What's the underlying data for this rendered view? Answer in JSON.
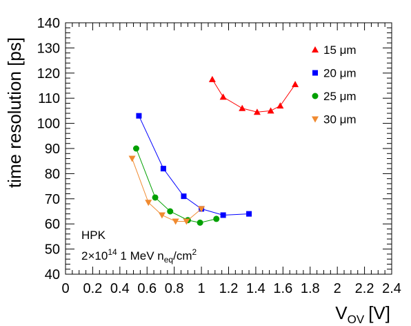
{
  "chart_data": {
    "type": "scatter",
    "xlabel_main": "V",
    "xlabel_sub": "OV",
    "xlabel_unit": "[V]",
    "ylabel": "time resolution [ps]",
    "xlim": [
      0,
      2.4
    ],
    "ylim": [
      40,
      140
    ],
    "x_ticks": [
      "0",
      "0.2",
      "0.4",
      "0.6",
      "0.8",
      "1",
      "1.2",
      "1.4",
      "1.6",
      "1.8",
      "2",
      "2.2",
      "2.4"
    ],
    "y_ticks": [
      "40",
      "50",
      "60",
      "70",
      "80",
      "90",
      "100",
      "110",
      "120",
      "130",
      "140"
    ],
    "annotation": {
      "line1": "HPK",
      "line2_prefix": "2",
      "line2_times": "×",
      "line2_base": "10",
      "line2_exp": "14",
      "line2_mid": " 1 MeV n",
      "line2_sub": "eq",
      "line2_unit": "/cm",
      "line2_unit_exp": "2"
    },
    "legend": {
      "position": "top-right"
    },
    "series": [
      {
        "name": "15 μm",
        "color": "#ff0000",
        "marker": "triangle-up",
        "x": [
          1.08,
          1.16,
          1.3,
          1.41,
          1.51,
          1.58,
          1.69
        ],
        "y": [
          117.5,
          110.5,
          106.0,
          104.5,
          105.0,
          107.0,
          115.5
        ]
      },
      {
        "name": "20 μm",
        "color": "#0000ff",
        "marker": "square",
        "x": [
          0.54,
          0.72,
          0.87,
          1.0,
          1.16,
          1.35
        ],
        "y": [
          103.0,
          82.0,
          71.0,
          66.0,
          63.5,
          64.0
        ]
      },
      {
        "name": "25 μm",
        "color": "#00a000",
        "marker": "circle",
        "x": [
          0.52,
          0.66,
          0.77,
          0.9,
          0.99,
          1.11
        ],
        "y": [
          90.0,
          70.5,
          65.0,
          61.5,
          60.5,
          62.0
        ]
      },
      {
        "name": "30 μm",
        "color": "#f08a30",
        "marker": "triangle-down",
        "x": [
          0.49,
          0.61,
          0.71,
          0.81,
          0.89,
          1.0
        ],
        "y": [
          86.0,
          68.5,
          63.5,
          61.0,
          61.0,
          66.0
        ]
      }
    ]
  }
}
